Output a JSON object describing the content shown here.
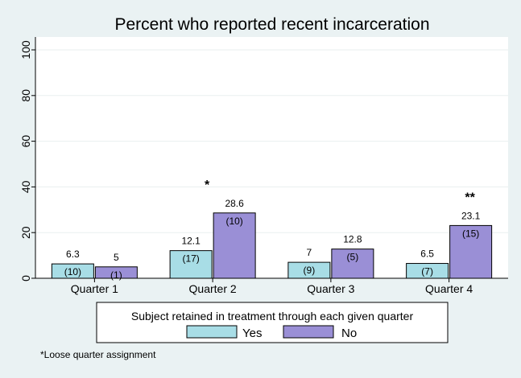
{
  "chart_data": {
    "type": "bar",
    "title": "Percent who reported recent incarceration",
    "categories": [
      "Quarter 1",
      "Quarter 2",
      "Quarter 3",
      "Quarter 4"
    ],
    "series": [
      {
        "name": "Yes",
        "values": [
          6.3,
          12.1,
          7,
          6.5
        ],
        "value_labels": [
          "6.3",
          "12.1",
          "7",
          "6.5"
        ],
        "counts": [
          "(10)",
          "(17)",
          "(9)",
          "(7)"
        ],
        "color": "#a8dde6"
      },
      {
        "name": "No",
        "values": [
          5,
          28.6,
          12.8,
          23.1
        ],
        "value_labels": [
          "5",
          "28.6",
          "12.8",
          "23.1"
        ],
        "counts": [
          "(1)",
          "(10)",
          "(5)",
          "(15)"
        ],
        "color": "#9a8fd6"
      }
    ],
    "significance": [
      "",
      "*",
      "",
      "**"
    ],
    "ylim": [
      0,
      100
    ],
    "yticks": [
      "0",
      "20",
      "40",
      "60",
      "80",
      "100"
    ],
    "xlabel": "",
    "ylabel": "",
    "grid": true,
    "legend": {
      "title": "Subject retained in treatment through each given quarter",
      "position": "bottom"
    }
  },
  "footnote": "*Loose quarter assignment",
  "colors": {
    "background": "#eaf2f3",
    "plot_background": "#ffffff",
    "yes_bar": "#a8dde6",
    "no_bar": "#9a8fd6"
  }
}
